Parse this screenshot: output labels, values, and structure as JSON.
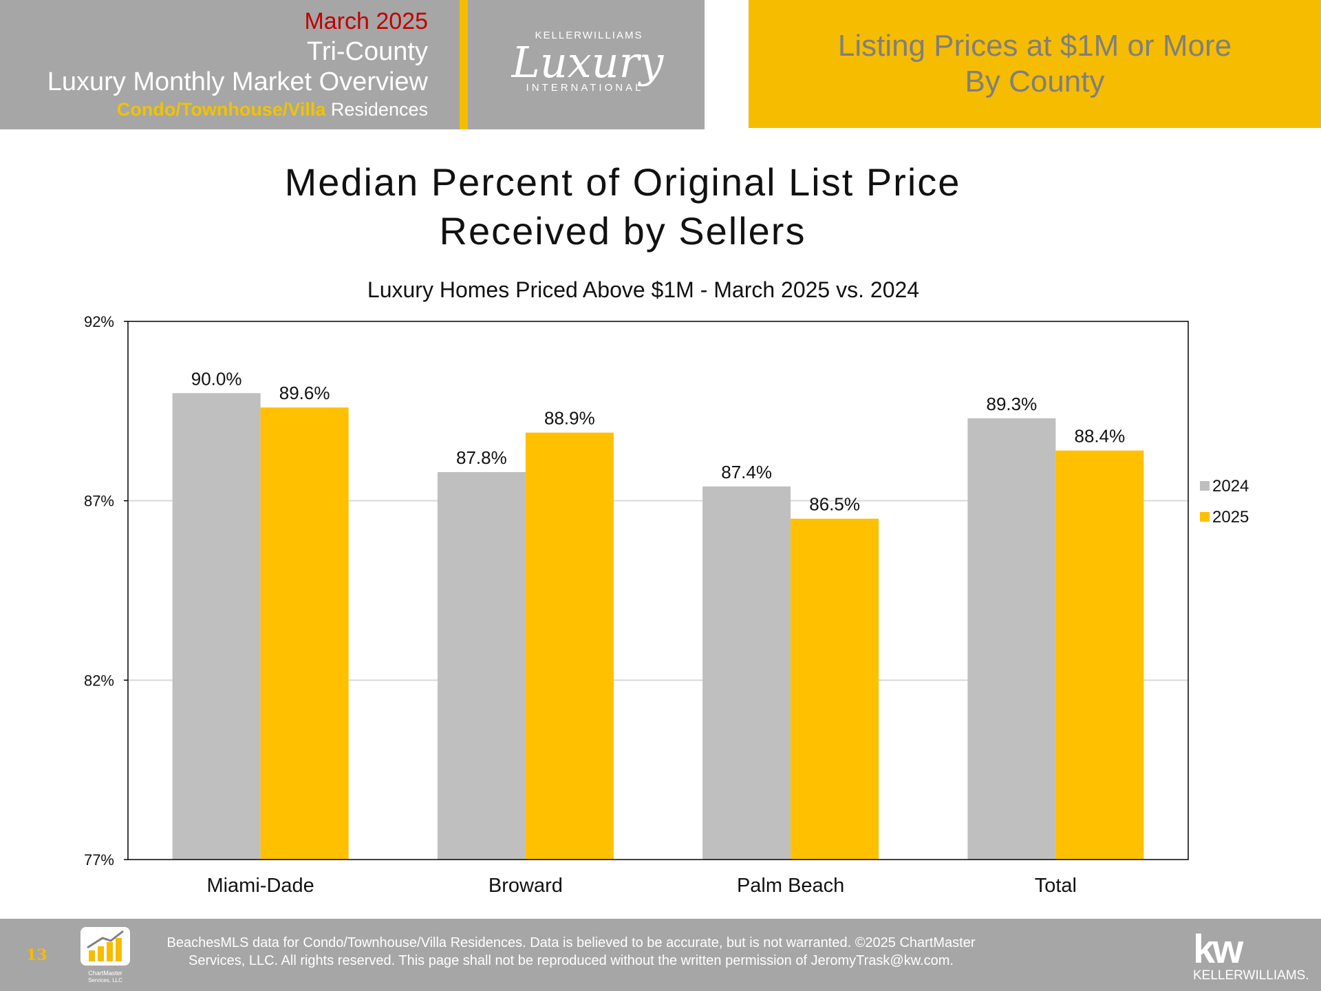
{
  "header": {
    "month": "March 2025",
    "region": "Tri-County",
    "overview": "Luxury Monthly Market Overview",
    "type_highlight": "Condo/Townhouse/Villa",
    "type_rest": " Residences",
    "brand_top": "KELLERWILLIAMS",
    "brand_script": "Luxury",
    "brand_bottom": "INTERNATIONAL",
    "right_line1": "Listing Prices at $1M or More",
    "right_line2": "By County"
  },
  "chart_data": {
    "type": "bar",
    "title_line1": "Median Percent of Original List Price",
    "title_line2": "Received by Sellers",
    "subtitle": "Luxury Homes Priced Above $1M - March 2025 vs. 2024",
    "categories": [
      "Miami-Dade",
      "Broward",
      "Palm Beach",
      "Total"
    ],
    "series": [
      {
        "name": "2024",
        "values": [
          90.0,
          87.8,
          87.4,
          89.3
        ],
        "labels": [
          "90.0%",
          "87.8%",
          "87.4%",
          "89.3%"
        ],
        "color": "#bfbfbf"
      },
      {
        "name": "2025",
        "values": [
          89.6,
          88.9,
          86.5,
          88.4
        ],
        "labels": [
          "89.6%",
          "88.9%",
          "86.5%",
          "88.4%"
        ],
        "color": "#ffc000"
      }
    ],
    "ylim": [
      77,
      92
    ],
    "yticks": [
      77,
      82,
      87,
      92
    ],
    "ytick_labels": [
      "77%",
      "82%",
      "87%",
      "92%"
    ],
    "grid": true,
    "legend_position": "right"
  },
  "footer": {
    "page_number": "13",
    "line1": "BeachesMLS data for Condo/Townhouse/Villa Residences.  Data is believed to be accurate, but is not warranted.   ©2025  ChartMaster",
    "line2": "Services, LLC.  All rights reserved. This page shall not be reproduced without the written permission of JeromyTrask@kw.com.",
    "chartmaster_logo_text": "ChartMaster Services, LLC",
    "kw_mark": "kw",
    "kw_name": "KELLERWILLIAMS."
  }
}
